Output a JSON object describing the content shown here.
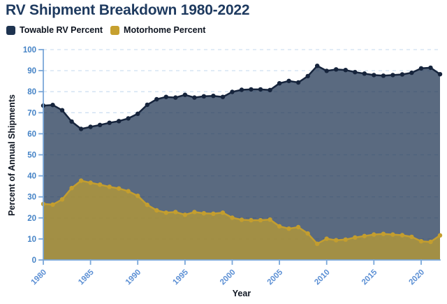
{
  "page_title": "RV Shipment Breakdown 1980-2022",
  "legend": {
    "items": [
      {
        "id": "towable",
        "label": "Towable RV Percent",
        "color": "#1e3350"
      },
      {
        "id": "motorhome",
        "label": "Motorhome Percent",
        "color": "#c6a02f"
      }
    ]
  },
  "chart_data": {
    "type": "area",
    "title": "RV Shipment Breakdown 1980-2022",
    "xlabel": "Year",
    "ylabel": "Percent of Annual Shipments",
    "ylim": [
      0,
      100
    ],
    "grid": "horizontal-dashed",
    "legend_position": "top-left",
    "x": [
      1980,
      1981,
      1982,
      1983,
      1984,
      1985,
      1986,
      1987,
      1988,
      1989,
      1990,
      1991,
      1992,
      1993,
      1994,
      1995,
      1996,
      1997,
      1998,
      1999,
      2000,
      2001,
      2002,
      2003,
      2004,
      2005,
      2006,
      2007,
      2008,
      2009,
      2010,
      2011,
      2012,
      2013,
      2014,
      2015,
      2016,
      2017,
      2018,
      2019,
      2020,
      2021,
      2022
    ],
    "x_ticks": [
      1980,
      1985,
      1990,
      1995,
      2000,
      2005,
      2010,
      2015,
      2020
    ],
    "y_ticks": [
      0,
      10,
      20,
      30,
      40,
      50,
      60,
      70,
      80,
      90,
      100
    ],
    "series": [
      {
        "id": "towable",
        "name": "Towable RV Percent",
        "line_color": "#16243c",
        "fill_color": "#203654",
        "fill_opacity": 0.74,
        "values": [
          73.4,
          73.7,
          71.2,
          65.8,
          62.3,
          63.3,
          64.2,
          65.2,
          66.0,
          67.3,
          69.5,
          73.8,
          76.4,
          77.5,
          77.2,
          78.5,
          77.2,
          77.8,
          78.0,
          77.5,
          79.9,
          80.9,
          81.1,
          81.1,
          80.8,
          84.0,
          85.1,
          84.4,
          87.4,
          92.3,
          89.9,
          90.6,
          90.3,
          89.3,
          88.6,
          87.9,
          87.6,
          87.9,
          88.2,
          89.0,
          91.1,
          91.4,
          88.3
        ]
      },
      {
        "id": "motorhome",
        "name": "Motorhome Percent",
        "line_color": "#c49e2e",
        "fill_color": "#bb9c31",
        "fill_opacity": 0.74,
        "values": [
          26.6,
          26.3,
          28.8,
          34.2,
          37.7,
          36.7,
          35.8,
          34.8,
          34.0,
          32.7,
          30.5,
          26.2,
          23.6,
          22.5,
          22.8,
          21.5,
          22.8,
          22.2,
          22.0,
          22.5,
          20.1,
          19.1,
          18.9,
          18.9,
          19.2,
          16.0,
          14.9,
          15.6,
          12.6,
          7.7,
          10.1,
          9.4,
          9.7,
          10.7,
          11.4,
          12.1,
          12.4,
          12.1,
          11.8,
          11.0,
          8.9,
          8.6,
          11.7
        ]
      }
    ]
  },
  "colors": {
    "background": "#ffffff",
    "title": "#1e3a5f",
    "axis": "#7aa7d9",
    "tick_label": "#4583c6",
    "grid": "#cfe0f1",
    "axis_title": "#101723"
  }
}
